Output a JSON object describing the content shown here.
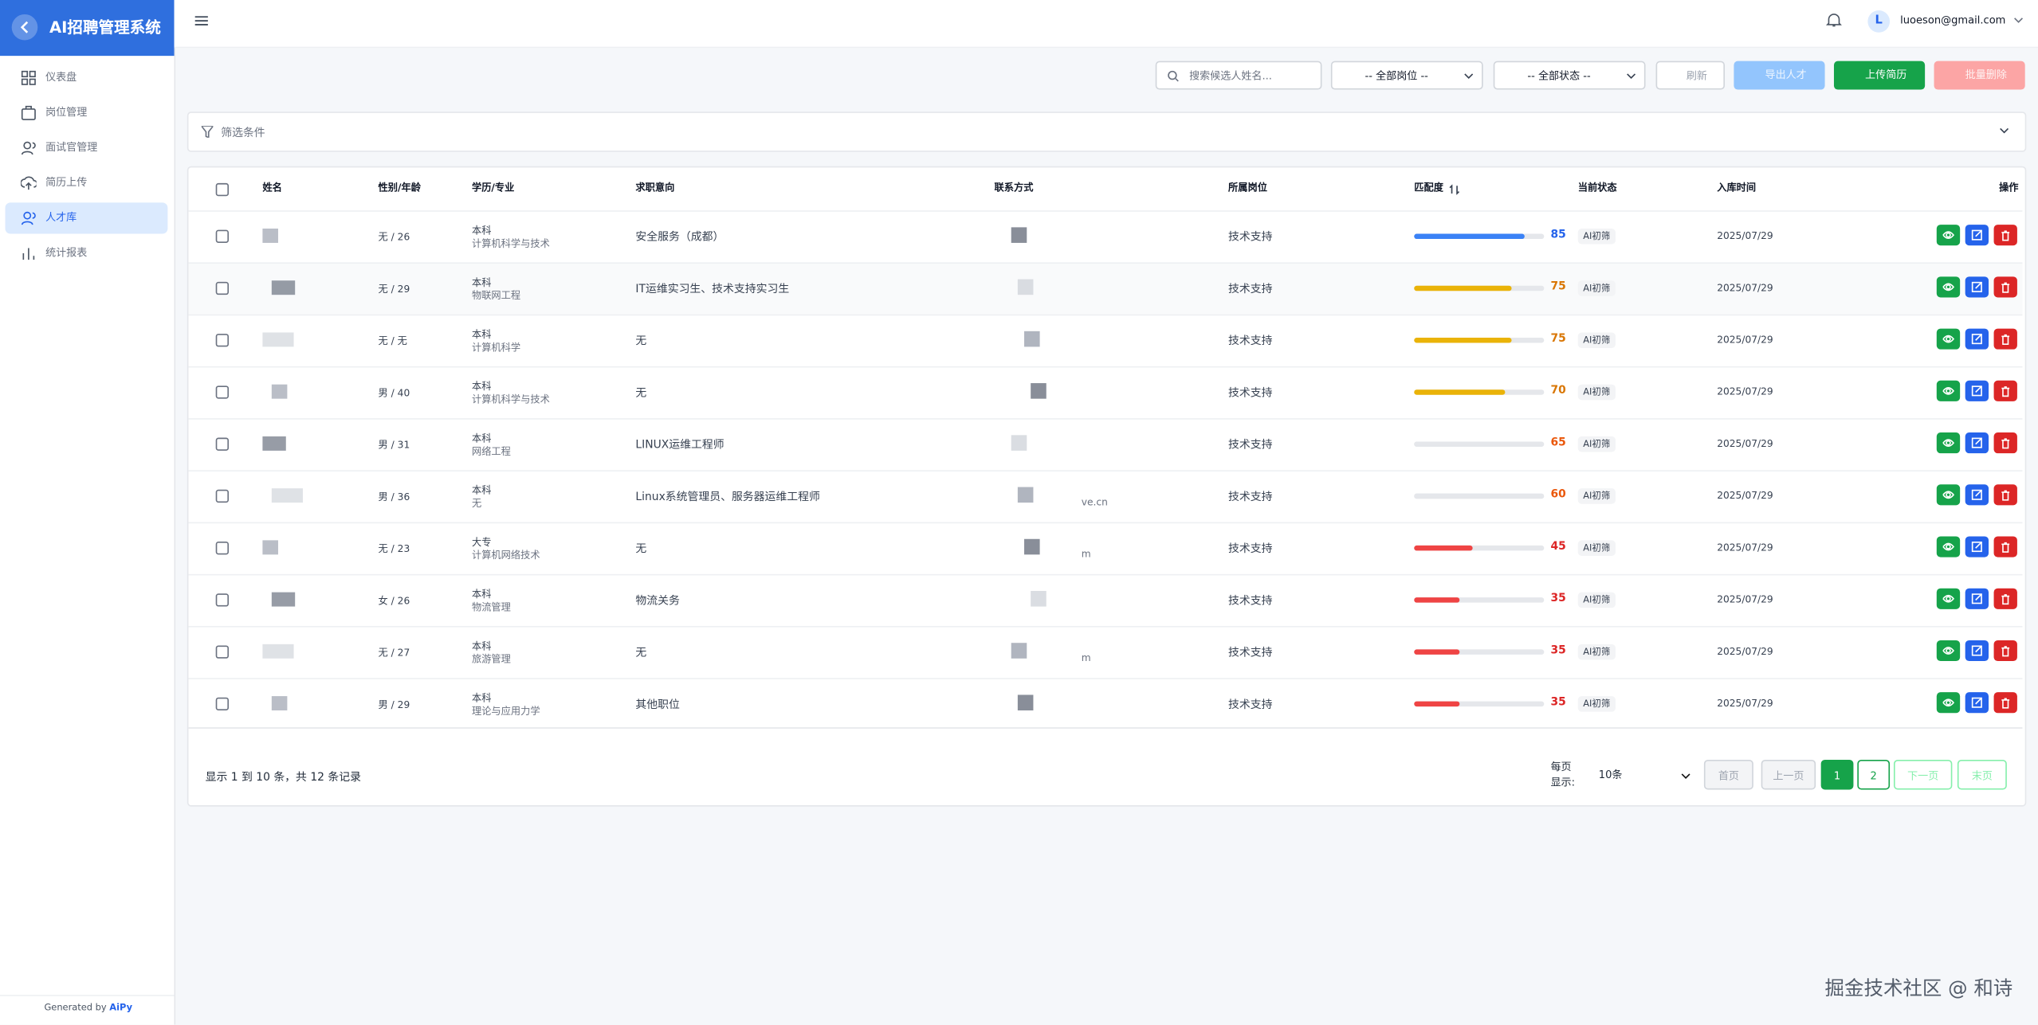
{
  "sidebar": {
    "brand": "AI招聘管理系统",
    "menu": [
      "仪表盘",
      "岗位管理",
      "面试官管理",
      "简历上传",
      "人才库",
      "统计报表"
    ],
    "active": 4,
    "footer_prefix": "Generated by",
    "footer_brand": "AiPy"
  },
  "topbar": {
    "avatar": "L",
    "email": "luoeson@gmail.com"
  },
  "toolbar": {
    "search_placeholder": "搜索候选人姓名...",
    "position_filter": "-- 全部岗位 --",
    "status_filter": "-- 全部状态 --",
    "refresh": "刷新",
    "export": "导出人才",
    "upload": "上传简历",
    "batch_delete": "批量删除"
  },
  "filter": {
    "title": "筛选条件"
  },
  "table": {
    "columns": [
      "姓名",
      "性别/年龄",
      "学历/专业",
      "求职意向",
      "联系方式",
      "所属岗位",
      "匹配度",
      "当前状态",
      "入库时间",
      "操作"
    ],
    "rows": [
      {
        "gender_age": "无 / 26",
        "degree": "本科",
        "major": "计算机科学与技术",
        "intention": "安全服务（成都）",
        "position": "技术支持",
        "score": 85,
        "score_color": "#2563eb",
        "bar_color": "#3b82f6",
        "status": "AI初筛",
        "date": "2025/07/29"
      },
      {
        "gender_age": "无 / 29",
        "degree": "本科",
        "major": "物联网工程",
        "intention": "IT运维实习生、技术支持实习生",
        "position": "技术支持",
        "score": 75,
        "score_color": "#d97706",
        "bar_color": "#eab308",
        "status": "AI初筛",
        "date": "2025/07/29"
      },
      {
        "gender_age": "无 / 无",
        "degree": "本科",
        "major": "计算机科学",
        "intention": "无",
        "position": "技术支持",
        "score": 75,
        "score_color": "#d97706",
        "bar_color": "#eab308",
        "status": "AI初筛",
        "date": "2025/07/29"
      },
      {
        "gender_age": "男 / 40",
        "degree": "本科",
        "major": "计算机科学与技术",
        "intention": "无",
        "position": "技术支持",
        "score": 70,
        "score_color": "#d97706",
        "bar_color": "#eab308",
        "status": "AI初筛",
        "date": "2025/07/29"
      },
      {
        "gender_age": "男 / 31",
        "degree": "本科",
        "major": "网络工程",
        "intention": "LINUX运维工程师",
        "position": "技术支持",
        "score": 65,
        "score_color": "#ea580c",
        "bar_color": "#e5e7eb",
        "status": "AI初筛",
        "date": "2025/07/29"
      },
      {
        "gender_age": "男 / 36",
        "degree": "本科",
        "major": "无",
        "intention": "Linux系统管理员、服务器运维工程师",
        "contact": "ve.cn",
        "position": "技术支持",
        "score": 60,
        "score_color": "#ea580c",
        "bar_color": "#e5e7eb",
        "status": "AI初筛",
        "date": "2025/07/29"
      },
      {
        "gender_age": "无 / 23",
        "degree": "大专",
        "major": "计算机网络技术",
        "intention": "无",
        "contact": "m",
        "position": "技术支持",
        "score": 45,
        "score_color": "#dc2626",
        "bar_color": "#ef4444",
        "status": "AI初筛",
        "date": "2025/07/29"
      },
      {
        "gender_age": "女 / 26",
        "degree": "本科",
        "major": "物流管理",
        "intention": "物流关务",
        "position": "技术支持",
        "score": 35,
        "score_color": "#dc2626",
        "bar_color": "#ef4444",
        "status": "AI初筛",
        "date": "2025/07/29"
      },
      {
        "gender_age": "无 / 27",
        "degree": "本科",
        "major": "旅游管理",
        "intention": "无",
        "contact": "m",
        "position": "技术支持",
        "score": 35,
        "score_color": "#dc2626",
        "bar_color": "#ef4444",
        "status": "AI初筛",
        "date": "2025/07/29"
      },
      {
        "gender_age": "男 / 29",
        "degree": "本科",
        "major": "理论与应用力学",
        "intention": "其他职位",
        "position": "技术支持",
        "score": 35,
        "score_color": "#dc2626",
        "bar_color": "#ef4444",
        "status": "AI初筛",
        "date": "2025/07/29"
      }
    ]
  },
  "pagination": {
    "summary": "显示 1 到 10 条，共 12 条记录",
    "page_size_label": "每页显示:",
    "page_size": "10条",
    "first": "首页",
    "prev": "上一页",
    "pages": [
      "1",
      "2"
    ],
    "current": 0,
    "next": "下一页",
    "last": "末页"
  },
  "watermark": "掘金技术社区 @ 和诗"
}
